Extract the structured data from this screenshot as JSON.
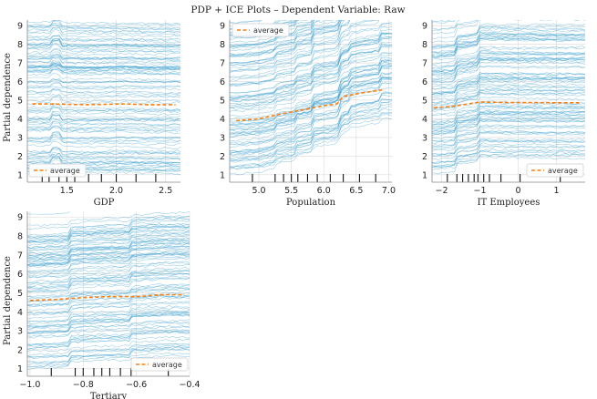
{
  "figure": {
    "title": "PDP + ICE Plots – Dependent Variable: Raw",
    "ylabel": "Partial dependence",
    "colors": {
      "ice": "#3a9fd0",
      "pdp": "#ff7f0e",
      "rug": "#111111",
      "grid": "#d9d9d9",
      "axis": "#888888"
    }
  },
  "chart_data": [
    {
      "type": "line",
      "xlabel": "GDP",
      "ylabel": "Partial dependence",
      "xlim": [
        1.1,
        2.65
      ],
      "ylim": [
        0.6,
        9.3
      ],
      "xticks": [
        1.5,
        2.0,
        2.5
      ],
      "xtick_labels": [
        "1.5",
        "2.0",
        "2.5"
      ],
      "yticks": [
        1,
        2,
        3,
        4,
        5,
        6,
        7,
        8,
        9
      ],
      "ytick_labels": [
        "1",
        "2",
        "3",
        "4",
        "5",
        "6",
        "7",
        "8",
        "9"
      ],
      "legend": "bottom-left",
      "series": [
        {
          "name": "average",
          "x": [
            1.15,
            1.3,
            1.5,
            1.7,
            1.9,
            2.1,
            2.3,
            2.5,
            2.6
          ],
          "y": [
            4.8,
            4.8,
            4.78,
            4.76,
            4.78,
            4.8,
            4.76,
            4.76,
            4.76
          ]
        }
      ],
      "ice_count": 100,
      "ice_steps": [
        {
          "x": 1.35,
          "a": 0.25
        },
        {
          "x": 1.45,
          "a": -0.25
        }
      ],
      "rug": [
        1.25,
        1.32,
        1.42,
        1.5,
        1.58,
        1.72,
        1.85,
        2.0,
        2.2,
        2.4
      ]
    },
    {
      "type": "line",
      "xlabel": "Population",
      "ylabel": "Partial dependence",
      "xlim": [
        4.55,
        7.05
      ],
      "ylim": [
        0.6,
        9.3
      ],
      "xticks": [
        5.0,
        5.5,
        6.0,
        6.5,
        7.0
      ],
      "xtick_labels": [
        "5.0",
        "5.5",
        "6.0",
        "6.5",
        "7.0"
      ],
      "yticks": [
        1,
        2,
        3,
        4,
        5,
        6,
        7,
        8,
        9
      ],
      "ytick_labels": [
        "1",
        "2",
        "3",
        "4",
        "5",
        "6",
        "7",
        "8",
        "9"
      ],
      "legend": "top-left",
      "series": [
        {
          "name": "average",
          "x": [
            4.65,
            5.0,
            5.4,
            5.7,
            6.0,
            6.2,
            6.3,
            6.6,
            6.9
          ],
          "y": [
            3.9,
            4.0,
            4.3,
            4.5,
            4.7,
            4.8,
            5.2,
            5.4,
            5.55
          ]
        }
      ],
      "ice_count": 100,
      "ice_steps": [
        {
          "x": 5.25,
          "a": 0.2
        },
        {
          "x": 5.55,
          "a": 0.25
        },
        {
          "x": 5.85,
          "a": 0.4
        },
        {
          "x": 6.25,
          "a": 0.35
        },
        {
          "x": 6.4,
          "a": 0.3
        },
        {
          "x": 6.85,
          "a": 0.35
        }
      ],
      "rug": [
        4.9,
        5.25,
        5.38,
        5.5,
        5.6,
        5.75,
        5.9,
        6.1,
        6.3,
        6.55,
        6.8
      ]
    },
    {
      "type": "line",
      "xlabel": "IT Employees",
      "ylabel": "Partial dependence",
      "xlim": [
        -2.25,
        1.75
      ],
      "ylim": [
        0.6,
        9.3
      ],
      "xticks": [
        -2,
        -1,
        0,
        1
      ],
      "xtick_labels": [
        "−2",
        "−1",
        "0",
        "1"
      ],
      "yticks": [
        1,
        2,
        3,
        4,
        5,
        6,
        7,
        8,
        9
      ],
      "ytick_labels": [
        "1",
        "2",
        "3",
        "4",
        "5",
        "6",
        "7",
        "8",
        "9"
      ],
      "legend": "bottom-right",
      "series": [
        {
          "name": "average",
          "x": [
            -2.2,
            -1.8,
            -1.6,
            -1.3,
            -1.0,
            -0.5,
            0.0,
            0.5,
            1.0,
            1.6
          ],
          "y": [
            4.6,
            4.65,
            4.7,
            4.8,
            4.9,
            4.88,
            4.87,
            4.87,
            4.86,
            4.86
          ]
        }
      ],
      "ice_count": 100,
      "ice_steps": [
        {
          "x": -1.65,
          "a": 0.35
        },
        {
          "x": -1.0,
          "a": 0.3
        }
      ],
      "rug": [
        -1.85,
        -1.6,
        -1.45,
        -1.3,
        -1.15,
        -1.05,
        -0.9,
        -0.75,
        -0.45,
        0.05,
        1.1
      ]
    },
    {
      "type": "line",
      "xlabel": "Tertiary",
      "ylabel": "Partial dependence",
      "xlim": [
        -1.01,
        -0.4
      ],
      "ylim": [
        0.6,
        9.3
      ],
      "xticks": [
        -1.0,
        -0.8,
        -0.6,
        -0.4
      ],
      "xtick_labels": [
        "−1.0",
        "−0.8",
        "−0.6",
        "−0.4"
      ],
      "yticks": [
        1,
        2,
        3,
        4,
        5,
        6,
        7,
        8,
        9
      ],
      "ytick_labels": [
        "1",
        "2",
        "3",
        "4",
        "5",
        "6",
        "7",
        "8",
        "9"
      ],
      "legend": "bottom-right",
      "series": [
        {
          "name": "average",
          "x": [
            -1.0,
            -0.9,
            -0.8,
            -0.7,
            -0.6,
            -0.55,
            -0.5,
            -0.42
          ],
          "y": [
            4.6,
            4.65,
            4.75,
            4.8,
            4.8,
            4.85,
            4.9,
            4.9
          ]
        }
      ],
      "ice_count": 100,
      "ice_steps": [
        {
          "x": -0.85,
          "a": 0.3
        },
        {
          "x": -0.62,
          "a": 0.25
        }
      ],
      "rug": [
        -0.92,
        -0.83,
        -0.8,
        -0.76,
        -0.73,
        -0.7,
        -0.66,
        -0.62,
        -0.48
      ]
    }
  ]
}
